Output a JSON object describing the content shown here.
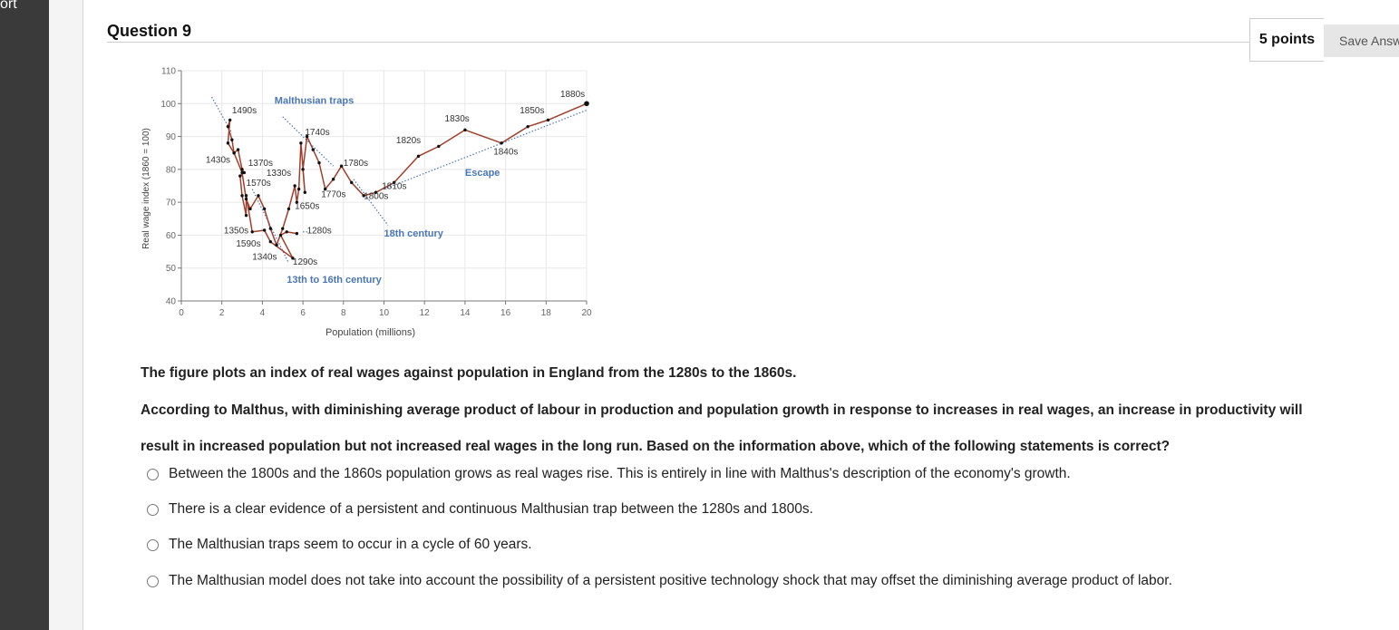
{
  "sidebar": {
    "partial_label": "ort"
  },
  "question": {
    "title": "Question 9",
    "points": "5 points",
    "save_label": "Save Answ",
    "stem_1": "The figure plots an index of real wages against population in England from the 1280s to the 1860s.",
    "stem_2": "According to Malthus, with diminishing average product of labour in production and population growth in response to increases in real wages, an increase in productivity will",
    "stem_3": "result in increased population but not increased real wages in the long run. Based on the information above, which of the following statements is correct?",
    "options": [
      "Between the 1800s and the 1860s population grows as real wages rise. This is entirely in line with Malthus's description of the economy's growth.",
      "There is a clear evidence of a persistent and continuous Malthusian trap between the 1280s and 1800s.",
      "The Malthusian traps seem to occur in a cycle of 60 years.",
      "The Malthusian model does not take into account the possibility of a persistent positive technology shock that may offset the diminishing average product of labor."
    ]
  },
  "chart_data": {
    "type": "line",
    "xlabel": "Population (millions)",
    "ylabel": "Real wage index (1860 = 100)",
    "xlim": [
      0,
      20
    ],
    "ylim": [
      40,
      110
    ],
    "xticks": [
      "0",
      "2",
      "4",
      "6",
      "8",
      "10",
      "12",
      "14",
      "16",
      "18",
      "20"
    ],
    "yticks": [
      "40",
      "50",
      "60",
      "70",
      "80",
      "90",
      "100",
      "110"
    ],
    "grid": true,
    "colors": {
      "series": "#a0402c",
      "annotation": "#4a76b8",
      "points": "#111111"
    },
    "series": [
      {
        "values": [
          [
            5.7,
            60.5
          ],
          [
            5.2,
            61
          ],
          [
            4.9,
            60
          ],
          [
            5.5,
            53
          ],
          [
            4.4,
            58
          ],
          [
            4.1,
            61.5
          ],
          [
            3.5,
            61
          ],
          [
            3.2,
            72
          ],
          [
            3.2,
            66
          ],
          [
            3.0,
            72
          ],
          [
            2.9,
            78
          ],
          [
            3.1,
            79
          ],
          [
            3.0,
            80
          ],
          [
            2.8,
            86
          ],
          [
            2.6,
            85
          ],
          [
            2.5,
            89
          ],
          [
            2.3,
            93
          ],
          [
            2.4,
            95
          ],
          [
            2.3,
            88
          ],
          [
            2.6,
            85
          ],
          [
            3.0,
            79
          ],
          [
            3.2,
            71
          ],
          [
            3.4,
            68
          ],
          [
            3.8,
            72
          ],
          [
            4.1,
            68
          ],
          [
            4.4,
            62
          ],
          [
            4.7,
            57
          ],
          [
            5.0,
            62
          ],
          [
            5.3,
            68
          ],
          [
            5.6,
            75
          ],
          [
            5.7,
            70
          ],
          [
            5.8,
            74
          ],
          [
            5.9,
            88
          ],
          [
            6.1,
            73
          ],
          [
            6.0,
            80
          ],
          [
            6.2,
            90
          ],
          [
            6.5,
            86
          ],
          [
            6.8,
            82
          ],
          [
            7.1,
            74
          ],
          [
            7.5,
            77
          ],
          [
            7.9,
            81
          ],
          [
            8.4,
            76
          ],
          [
            9.0,
            72
          ],
          [
            9.6,
            73
          ],
          [
            10.5,
            76
          ],
          [
            11.7,
            84
          ],
          [
            12.7,
            87
          ],
          [
            14.0,
            92
          ],
          [
            15.8,
            88
          ],
          [
            17.1,
            93
          ],
          [
            18.1,
            95
          ],
          [
            20.0,
            100
          ]
        ]
      }
    ],
    "point_labels": [
      {
        "t": "1490s",
        "x": 2.5,
        "y": 97
      },
      {
        "t": "1430s",
        "x": 1.2,
        "y": 82
      },
      {
        "t": "1370s",
        "x": 3.3,
        "y": 81
      },
      {
        "t": "1330s",
        "x": 4.2,
        "y": 78
      },
      {
        "t": "1570s",
        "x": 3.2,
        "y": 75
      },
      {
        "t": "1350s",
        "x": 2.1,
        "y": 60.5
      },
      {
        "t": "1590s",
        "x": 2.7,
        "y": 56.5
      },
      {
        "t": "1340s",
        "x": 3.5,
        "y": 52.5
      },
      {
        "t": "1290s",
        "x": 5.5,
        "y": 51
      },
      {
        "t": "1650s",
        "x": 5.6,
        "y": 68
      },
      {
        "t": "1280s",
        "x": 6.2,
        "y": 60.5
      },
      {
        "t": "1740s",
        "x": 6.1,
        "y": 90.5
      },
      {
        "t": "1770s",
        "x": 6.9,
        "y": 71.5
      },
      {
        "t": "1780s",
        "x": 8.0,
        "y": 81
      },
      {
        "t": "1800s",
        "x": 9.0,
        "y": 71
      },
      {
        "t": "1810s",
        "x": 9.9,
        "y": 74
      },
      {
        "t": "1820s",
        "x": 10.6,
        "y": 88
      },
      {
        "t": "1830s",
        "x": 13.0,
        "y": 94.5
      },
      {
        "t": "1840s",
        "x": 15.4,
        "y": 84.5
      },
      {
        "t": "1850s",
        "x": 16.7,
        "y": 97
      },
      {
        "t": "1880s",
        "x": 18.7,
        "y": 102
      }
    ],
    "annotations": [
      {
        "t": "Malthusian traps",
        "x": 4.6,
        "y": 100
      },
      {
        "t": "Escape",
        "x": 14.0,
        "y": 78
      },
      {
        "t": "18th century",
        "x": 10.0,
        "y": 59.5
      },
      {
        "t": "13th to 16th century",
        "x": 5.2,
        "y": 45.5
      }
    ]
  }
}
